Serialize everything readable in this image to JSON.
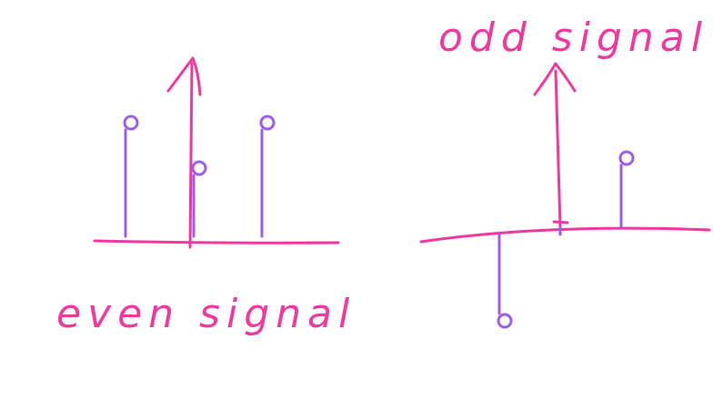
{
  "labels": {
    "even": "even signal",
    "odd": "odd signal"
  },
  "colors": {
    "axis": "#f0389f",
    "stem": "#9b5cf0",
    "text": "#f0389f"
  },
  "chart_data": [
    {
      "type": "stem",
      "name_label": "even signal",
      "x": [
        -1,
        0,
        1
      ],
      "values": [
        1,
        0.6,
        1
      ]
    },
    {
      "type": "stem",
      "name_label": "odd signal",
      "x": [
        -1,
        0,
        1
      ],
      "values": [
        -1,
        0,
        0.8
      ]
    }
  ]
}
